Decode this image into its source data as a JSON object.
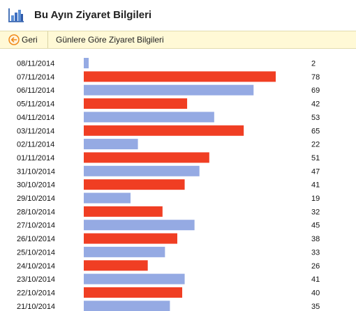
{
  "header": {
    "title": "Bu Ayın Ziyaret Bilgileri",
    "icon": "bar-chart-icon"
  },
  "toolbar": {
    "back_label": "Geri",
    "back_icon": "back-arrow-icon",
    "subtitle": "Günlere Göre Ziyaret Bilgileri"
  },
  "colors": {
    "primary": "#f03e23",
    "secondary": "#95aae3",
    "toolbar_bg": "#fff9d6",
    "back_icon": "#f08a1a"
  },
  "chart_data": {
    "type": "bar",
    "orientation": "horizontal",
    "categories": [
      "08/11/2014",
      "07/11/2014",
      "06/11/2014",
      "05/11/2014",
      "04/11/2014",
      "03/11/2014",
      "02/11/2014",
      "01/11/2014",
      "31/10/2014",
      "30/10/2014",
      "29/10/2014",
      "28/10/2014",
      "27/10/2014",
      "26/10/2014",
      "25/10/2014",
      "24/10/2014",
      "23/10/2014",
      "22/10/2014",
      "21/10/2014"
    ],
    "values": [
      2,
      78,
      69,
      42,
      53,
      65,
      22,
      51,
      47,
      41,
      19,
      32,
      45,
      38,
      33,
      26,
      41,
      40,
      35
    ],
    "bar_colors": [
      "#95aae3",
      "#f03e23",
      "#95aae3",
      "#f03e23",
      "#95aae3",
      "#f03e23",
      "#95aae3",
      "#f03e23",
      "#95aae3",
      "#f03e23",
      "#95aae3",
      "#f03e23",
      "#95aae3",
      "#f03e23",
      "#95aae3",
      "#f03e23",
      "#95aae3",
      "#f03e23",
      "#95aae3"
    ],
    "xlim": [
      0,
      78
    ],
    "grid": false,
    "legend": "none"
  }
}
